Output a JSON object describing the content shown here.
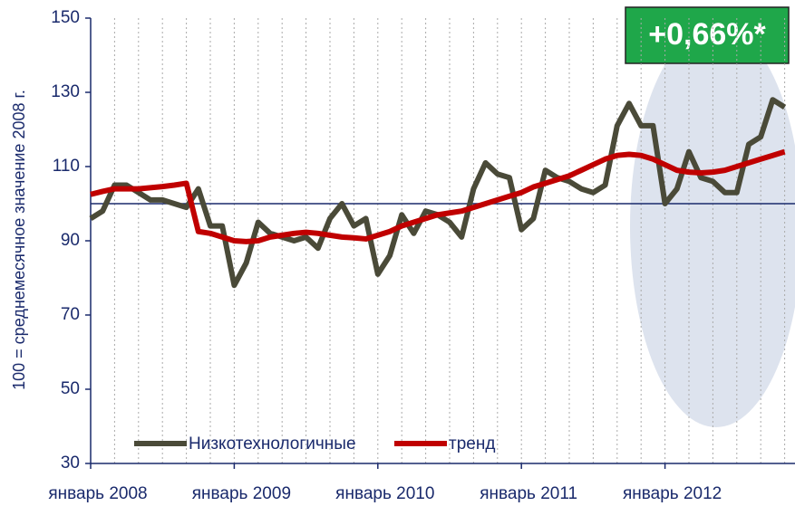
{
  "chart_data": {
    "type": "line",
    "y_label": "100 = среднемесячное значение 2008 г.",
    "annotation": "+0,66%*",
    "categories": [
      "январь 2008",
      null,
      null,
      null,
      null,
      null,
      null,
      null,
      null,
      null,
      null,
      null,
      "январь 2009",
      null,
      null,
      null,
      null,
      null,
      null,
      null,
      null,
      null,
      null,
      null,
      "январь 2010",
      null,
      null,
      null,
      null,
      null,
      null,
      null,
      null,
      null,
      null,
      null,
      "январь 2011",
      null,
      null,
      null,
      null,
      null,
      null,
      null,
      null,
      null,
      null,
      null,
      "январь 2012",
      null,
      null,
      null,
      null,
      null,
      null,
      null,
      null,
      null,
      null
    ],
    "series": [
      {
        "name": "Низкотехнологичные",
        "color": "#4a4a38",
        "values": [
          96,
          98,
          105,
          105,
          103,
          101,
          101,
          100,
          99,
          104,
          94,
          94,
          78,
          84,
          95,
          92,
          91,
          90,
          91,
          88,
          96,
          100,
          94,
          96,
          81,
          86,
          97,
          92,
          98,
          97,
          95,
          91,
          104,
          111,
          108,
          107,
          93,
          96,
          109,
          107,
          106,
          104,
          103,
          105,
          121,
          127,
          121,
          121,
          100,
          104,
          114,
          107,
          106,
          103,
          103,
          116,
          118,
          128,
          126
        ]
      },
      {
        "name": "тренд",
        "color": "#c00000",
        "values": [
          102.5,
          103.3,
          104,
          104,
          104,
          104.3,
          104.6,
          105,
          105.5,
          92.5,
          92,
          91,
          90,
          89.8,
          90,
          91,
          91.5,
          92,
          92.3,
          92,
          91.5,
          91,
          90.8,
          90.5,
          91.5,
          92.5,
          94,
          95,
          96,
          97,
          97.5,
          98,
          99,
          100,
          101,
          102,
          103,
          104.5,
          105.5,
          106.5,
          107.5,
          109,
          110.5,
          112,
          113,
          113.3,
          113,
          112,
          110.5,
          109,
          108.5,
          108.3,
          108.5,
          109,
          110,
          111,
          112,
          113,
          114
        ]
      }
    ],
    "ylim": [
      30,
      150
    ],
    "yticks": [
      30,
      50,
      70,
      90,
      110,
      130,
      150
    ],
    "reference_line": 100
  }
}
